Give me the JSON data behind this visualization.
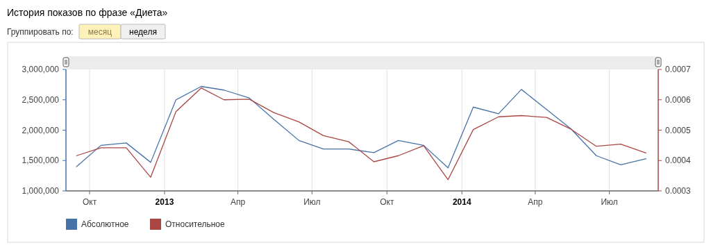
{
  "chart_data": {
    "type": "line",
    "title": "История показов по фразе «Диета»",
    "annotations": [
      "Группировать по:",
      "месяц",
      "неделя"
    ],
    "x": [
      "2012-09-15",
      "2012-10-15",
      "2012-11-15",
      "2012-12-15",
      "2013-01-15",
      "2013-02-15",
      "2013-03-15",
      "2013-04-15",
      "2013-05-15",
      "2013-06-15",
      "2013-07-15",
      "2013-08-15",
      "2013-09-15",
      "2013-10-15",
      "2013-11-15",
      "2013-12-15",
      "2014-01-15",
      "2014-02-15",
      "2014-03-15",
      "2014-04-15",
      "2014-05-15",
      "2014-06-15",
      "2014-07-15",
      "2014-08-15"
    ],
    "series": [
      {
        "name": "Абсолютное",
        "color": "#4572a7",
        "values": [
          1400000,
          1750000,
          1790000,
          1470000,
          2500000,
          2720000,
          2660000,
          2530000,
          2180000,
          1830000,
          1690000,
          1690000,
          1630000,
          1830000,
          1750000,
          1380000,
          2380000,
          2270000,
          2670000,
          2340000,
          2020000,
          1580000,
          1430000,
          1530000
        ]
      },
      {
        "name": "Относительное",
        "color": "#aa4643",
        "axis": "y2",
        "values": [
          0.000416,
          0.000442,
          0.000442,
          0.000345,
          0.000561,
          0.000639,
          0.0006,
          0.000602,
          0.000558,
          0.000527,
          0.000482,
          0.000462,
          0.000396,
          0.000416,
          0.000449,
          0.000337,
          0.000502,
          0.000544,
          0.000548,
          0.000542,
          0.000503,
          0.000447,
          0.000454,
          0.000425
        ]
      }
    ],
    "xlim": [
      "2012-09-02",
      "2014-08-30"
    ],
    "xticks": [
      {
        "value": "2012-10-01",
        "label": "Окт"
      },
      {
        "value": "2013-01-01",
        "label": "2013"
      },
      {
        "value": "2013-04-01",
        "label": "Апр"
      },
      {
        "value": "2013-07-01",
        "label": "Июл"
      },
      {
        "value": "2013-10-01",
        "label": "Окт"
      },
      {
        "value": "2014-01-01",
        "label": "2014"
      },
      {
        "value": "2014-04-01",
        "label": "Апр"
      },
      {
        "value": "2014-07-01",
        "label": "Июл"
      }
    ],
    "ylim": [
      1000000,
      3000000
    ],
    "yticks": [
      {
        "value": 1000000,
        "label": "1,000,000"
      },
      {
        "value": 1500000,
        "label": "1,500,000"
      },
      {
        "value": 2000000,
        "label": "2,000,000"
      },
      {
        "value": 2500000,
        "label": "2,500,000"
      },
      {
        "value": 3000000,
        "label": "3,000,000"
      }
    ],
    "y2lim": [
      0.0003,
      0.0007
    ],
    "y2ticks": [
      0.0003,
      0.0004,
      0.0005,
      0.0006,
      0.0007
    ],
    "grid": "x",
    "legend": "bottom left",
    "marker": "none",
    "line_style": "solid"
  }
}
